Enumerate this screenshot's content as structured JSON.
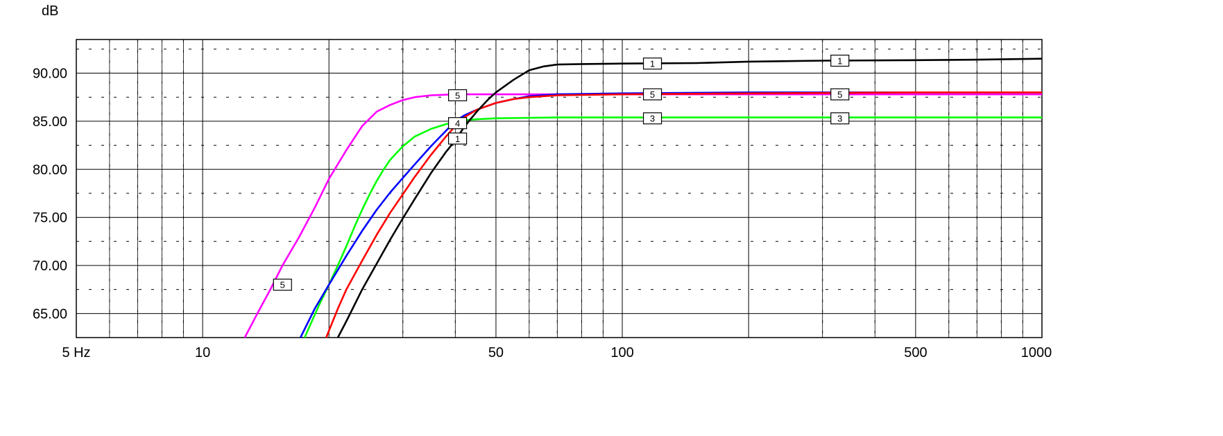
{
  "chart_data": {
    "type": "line",
    "ylabel": "dB",
    "x_scale": "log",
    "xlim": [
      5,
      1000
    ],
    "ylim": [
      62.5,
      93.5
    ],
    "grid": true,
    "y_ticks": [
      {
        "value": 90,
        "label": "90.00"
      },
      {
        "value": 85,
        "label": "85.00"
      },
      {
        "value": 80,
        "label": "80.00"
      },
      {
        "value": 75,
        "label": "75.00"
      },
      {
        "value": 70,
        "label": "70.00"
      },
      {
        "value": 65,
        "label": "65.00"
      }
    ],
    "x_ticks": [
      {
        "value": 5,
        "label": "5 Hz"
      },
      {
        "value": 10,
        "label": "10"
      },
      {
        "value": 50,
        "label": "50"
      },
      {
        "value": 100,
        "label": "100"
      },
      {
        "value": 500,
        "label": "500"
      },
      {
        "value": 1000,
        "label": "1000"
      }
    ],
    "series": [
      {
        "color": "#ff00ff",
        "x": [
          12.6,
          13.5,
          14.5,
          15.5,
          17,
          18.5,
          20,
          22,
          24,
          26,
          28,
          30,
          32,
          35,
          40,
          50,
          70,
          100,
          200,
          500,
          1000
        ],
        "y": [
          62.5,
          65,
          67.5,
          70,
          73,
          76,
          79,
          82,
          84.5,
          86,
          86.7,
          87.2,
          87.5,
          87.7,
          87.8,
          87.8,
          87.8,
          87.8,
          87.8,
          87.8,
          87.8
        ]
      },
      {
        "color": "#00ff00",
        "x": [
          17.5,
          19,
          20,
          21,
          22,
          23,
          24,
          25,
          26,
          27,
          28,
          30,
          32,
          35,
          38,
          40,
          42,
          45,
          50,
          70,
          100,
          200,
          500,
          1000
        ],
        "y": [
          62.5,
          66,
          68,
          70,
          72,
          74,
          75.8,
          77.4,
          78.8,
          80,
          81,
          82.4,
          83.4,
          84.2,
          84.7,
          84.9,
          85.1,
          85.2,
          85.3,
          85.4,
          85.4,
          85.4,
          85.4,
          85.4
        ]
      },
      {
        "color": "#0000ff",
        "x": [
          17.1,
          18.5,
          20,
          22,
          24,
          26,
          28,
          30,
          32,
          35,
          38,
          40,
          42,
          45,
          50,
          55,
          60,
          70,
          100,
          200,
          500,
          1000
        ],
        "y": [
          62.5,
          65.5,
          68,
          71,
          73.6,
          75.8,
          77.6,
          79.1,
          80.5,
          82.4,
          84,
          85,
          85.6,
          86.2,
          86.9,
          87.3,
          87.6,
          87.8,
          87.9,
          88,
          88,
          88
        ]
      },
      {
        "color": "#ff0000",
        "x": [
          19.7,
          21,
          22,
          24,
          26,
          28,
          30,
          32,
          35,
          38,
          40,
          42,
          45,
          50,
          55,
          60,
          70,
          100,
          200,
          500,
          1000
        ],
        "y": [
          62.5,
          65.5,
          67.5,
          70.5,
          73.2,
          75.5,
          77.4,
          79.2,
          81.5,
          83.4,
          84.5,
          85.4,
          86.2,
          86.9,
          87.3,
          87.5,
          87.7,
          87.8,
          87.9,
          88,
          88
        ]
      },
      {
        "color": "#000000",
        "x": [
          21,
          22,
          24,
          26,
          28,
          30,
          32,
          35,
          38,
          40,
          42,
          45,
          48,
          50,
          55,
          60,
          65,
          70,
          80,
          100,
          150,
          200,
          300,
          500,
          700,
          1000
        ],
        "y": [
          62.5,
          64.2,
          67.5,
          70.2,
          72.7,
          74.9,
          76.9,
          79.6,
          81.8,
          83,
          84.4,
          86,
          87.3,
          88,
          89.3,
          90.3,
          90.7,
          90.9,
          90.95,
          91,
          91.05,
          91.2,
          91.3,
          91.35,
          91.4,
          91.5
        ]
      }
    ],
    "curve_labels": [
      {
        "text": "5",
        "x": 40.5,
        "y": 87.7
      },
      {
        "text": "5",
        "x": 15.5,
        "y": 68
      },
      {
        "text": "4",
        "x": 40.5,
        "y": 84.8
      },
      {
        "text": "1",
        "x": 40.5,
        "y": 83.2
      },
      {
        "text": "1",
        "x": 118,
        "y": 91
      },
      {
        "text": "5",
        "x": 118,
        "y": 87.8
      },
      {
        "text": "3",
        "x": 118,
        "y": 85.3
      },
      {
        "text": "1",
        "x": 330,
        "y": 91.3
      },
      {
        "text": "5",
        "x": 330,
        "y": 87.8
      },
      {
        "text": "3",
        "x": 330,
        "y": 85.3
      }
    ]
  }
}
